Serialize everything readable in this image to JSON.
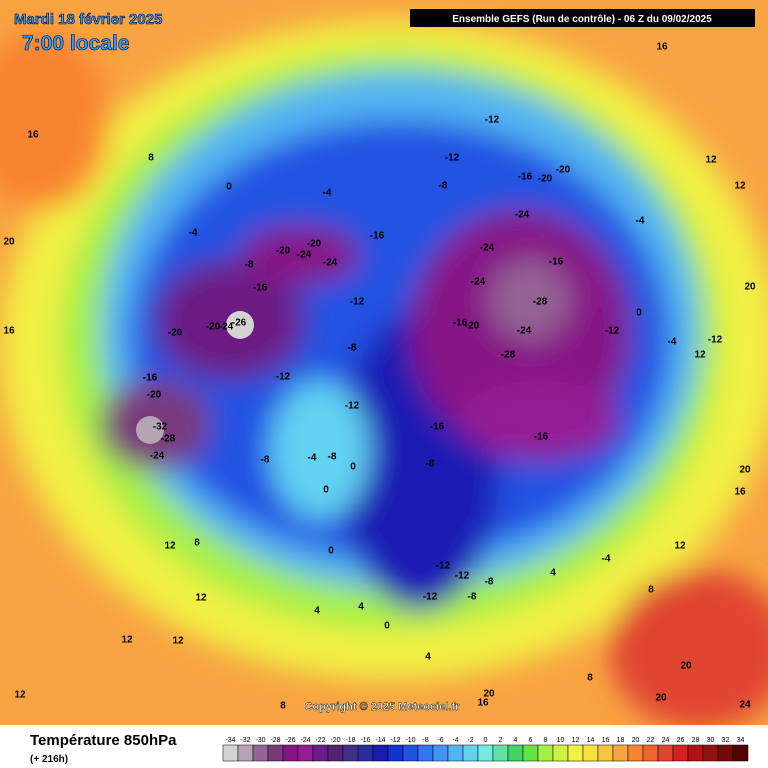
{
  "title": "Mardi 18 février 2025",
  "subtitle": "7:00 locale",
  "run_info": "Ensemble GEFS  (Run de contrôle)  -  06 Z du 09/02/2025",
  "copyright": "Copyright © 2025 Meteociel.fr",
  "field": "Température 850hPa",
  "lead_time": "(+ 216h)",
  "scale": {
    "values": [
      -34,
      -32,
      -30,
      -28,
      -26,
      -24,
      -22,
      -20,
      -18,
      -16,
      -14,
      -12,
      -10,
      -8,
      -6,
      -4,
      -2,
      0,
      2,
      4,
      6,
      8,
      10,
      12,
      14,
      16,
      18,
      20,
      22,
      24,
      26,
      28,
      30,
      32,
      34
    ],
    "colors": [
      "#d4d4d4",
      "#b4a4b4",
      "#946494",
      "#7a3a7a",
      "#861486",
      "#941c94",
      "#6c1c84",
      "#522274",
      "#40308a",
      "#2c2c9c",
      "#1a1ab4",
      "#1034d2",
      "#2252e2",
      "#3274f2",
      "#4294f2",
      "#52b4f2",
      "#62d2f2",
      "#74eae2",
      "#62e2a2",
      "#44d264",
      "#66e244",
      "#a4f044",
      "#d2f044",
      "#f2f044",
      "#f8e042",
      "#f8c442",
      "#f8a442",
      "#f88432",
      "#f06432",
      "#e04432",
      "#d22222",
      "#b41212",
      "#921212",
      "#720a0a",
      "#520202"
    ]
  },
  "map_labels": [
    -12,
    -12,
    -8,
    -16,
    -20,
    -20,
    -24,
    -24,
    -16,
    -24,
    -28,
    -16,
    -20,
    -24,
    -28,
    -12,
    -16,
    -16,
    -8,
    -16,
    -12,
    -8,
    -12,
    -20,
    -24,
    -20,
    -24,
    -8,
    -16,
    -20,
    -20,
    -24,
    -26,
    -12,
    -16,
    -20,
    -32,
    -28,
    -24,
    -8,
    -4,
    -8,
    0,
    0,
    0,
    -12,
    -12,
    -8,
    -12,
    -8,
    4,
    -4,
    4,
    4,
    0,
    4,
    12,
    8,
    12,
    12,
    12,
    16,
    16,
    20,
    20,
    20,
    20,
    20,
    24,
    16,
    12,
    12,
    8,
    0,
    -4,
    -4,
    -12,
    -4,
    0,
    -4,
    12,
    16,
    12,
    8,
    8,
    20,
    16,
    8,
    12
  ]
}
